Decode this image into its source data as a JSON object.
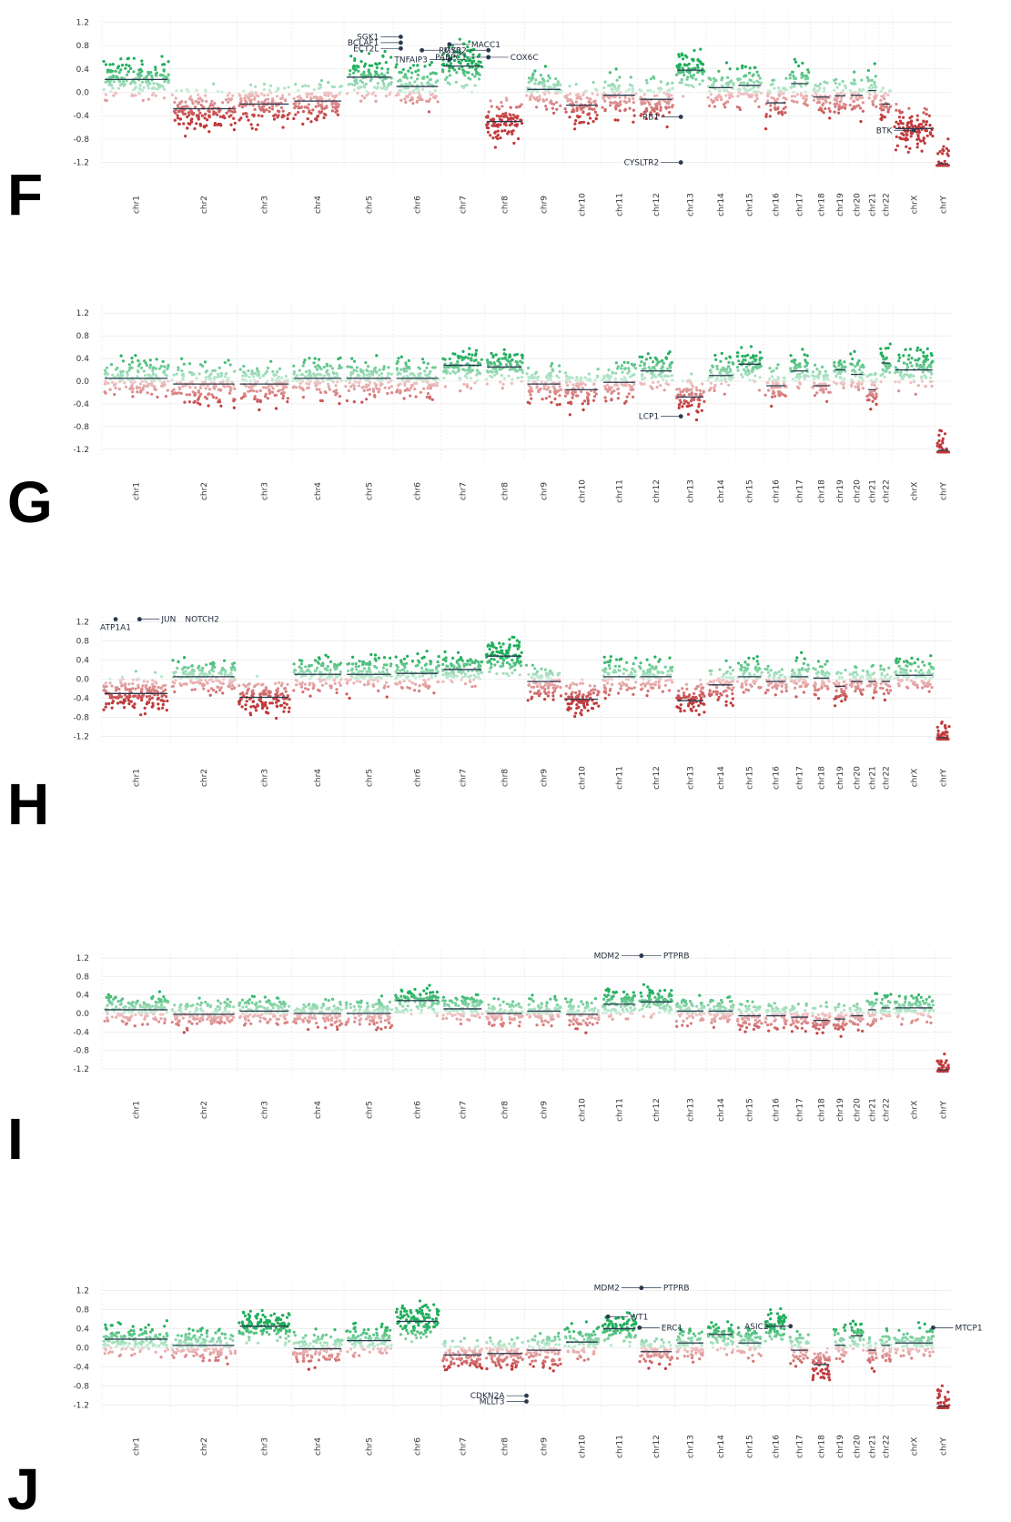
{
  "chart_data": [
    {
      "panel": "F",
      "type": "scatter",
      "y_ticks": [
        "1.2",
        "0.8",
        "0.4",
        "0.0",
        "-0.4",
        "-0.8",
        "-1.2"
      ],
      "ylim": [
        -1.3,
        1.3
      ],
      "chromosomes": [
        "chr1",
        "chr2",
        "chr3",
        "chr4",
        "chr5",
        "chr6",
        "chr7",
        "chr8",
        "chr9",
        "chr10",
        "chr11",
        "chr12",
        "chr13",
        "chr14",
        "chr15",
        "chr16",
        "chr17",
        "chr18",
        "chr19",
        "chr20",
        "chr21",
        "chr22",
        "chrX",
        "chrY"
      ],
      "segment_means": [
        0.22,
        -0.28,
        -0.2,
        -0.15,
        0.26,
        0.1,
        0.45,
        -0.5,
        0.05,
        -0.22,
        -0.05,
        -0.12,
        0.38,
        0.08,
        0.12,
        -0.18,
        0.15,
        -0.08,
        -0.06,
        -0.05,
        0.03,
        -0.2,
        -0.62,
        -1.22
      ],
      "spread": 0.22,
      "genes": [
        {
          "label": "SGK1",
          "chr": 5,
          "pos": 0.15,
          "y": 0.95,
          "side": "left"
        },
        {
          "label": "BCLAF1",
          "chr": 5,
          "pos": 0.15,
          "y": 0.85,
          "side": "left"
        },
        {
          "label": "ECT2L",
          "chr": 5,
          "pos": 0.15,
          "y": 0.75,
          "side": "left"
        },
        {
          "label": "MACC1",
          "chr": 6,
          "pos": 0.2,
          "y": 0.82,
          "side": "right"
        },
        {
          "label": "MYB",
          "chr": 5,
          "pos": 0.6,
          "y": 0.72,
          "side": "right"
        },
        {
          "label": "RGS22",
          "chr": 7,
          "pos": 0.1,
          "y": 0.72,
          "side": "left"
        },
        {
          "label": "TNFAIP3",
          "chr": 6,
          "pos": 0.2,
          "y": 0.56,
          "side": "left"
        },
        {
          "label": "PABPC1",
          "chr": 7,
          "pos": 0.1,
          "y": 0.6,
          "side": "left"
        },
        {
          "label": "COX6C",
          "chr": 7,
          "pos": 0.1,
          "y": 0.6,
          "side": "right"
        },
        {
          "label": "RB1",
          "chr": 12,
          "pos": 0.2,
          "y": -0.42,
          "side": "left"
        },
        {
          "label": "CYSLTR2",
          "chr": 12,
          "pos": 0.2,
          "y": -1.2,
          "side": "left"
        },
        {
          "label": "BTK",
          "chr": 22,
          "pos": 0.5,
          "y": -0.65,
          "side": "left"
        }
      ]
    },
    {
      "panel": "G",
      "type": "scatter",
      "y_ticks": [
        "1.2",
        "0.8",
        "0.4",
        "0.0",
        "-0.4",
        "-0.8",
        "-1.2"
      ],
      "ylim": [
        -1.3,
        1.3
      ],
      "chromosomes": [
        "chr1",
        "chr2",
        "chr3",
        "chr4",
        "chr5",
        "chr6",
        "chr7",
        "chr8",
        "chr9",
        "chr10",
        "chr11",
        "chr12",
        "chr13",
        "chr14",
        "chr15",
        "chr16",
        "chr17",
        "chr18",
        "chr19",
        "chr20",
        "chr21",
        "chr22",
        "chrX",
        "chrY"
      ],
      "segment_means": [
        0.05,
        -0.05,
        -0.05,
        0.05,
        0.05,
        0.05,
        0.28,
        0.25,
        -0.05,
        -0.15,
        -0.02,
        0.18,
        -0.28,
        0.1,
        0.3,
        -0.08,
        0.18,
        -0.08,
        0.2,
        0.12,
        -0.15,
        0.32,
        0.2,
        -1.22
      ],
      "spread": 0.2,
      "genes": [
        {
          "label": "LCP1",
          "chr": 12,
          "pos": 0.2,
          "y": -0.62,
          "side": "left"
        }
      ]
    },
    {
      "panel": "H",
      "type": "scatter",
      "y_ticks": [
        "1.2",
        "0.8",
        "0.4",
        "0.0",
        "-0.4",
        "-0.8",
        "-1.2"
      ],
      "ylim": [
        -1.3,
        1.3
      ],
      "chromosomes": [
        "chr1",
        "chr2",
        "chr3",
        "chr4",
        "chr5",
        "chr6",
        "chr7",
        "chr8",
        "chr9",
        "chr10",
        "chr11",
        "chr12",
        "chr13",
        "chr14",
        "chr15",
        "chr16",
        "chr17",
        "chr18",
        "chr19",
        "chr20",
        "chr21",
        "chr22",
        "chrX",
        "chrY"
      ],
      "segment_means": [
        -0.3,
        0.05,
        -0.38,
        0.1,
        0.1,
        0.12,
        0.2,
        0.48,
        -0.05,
        -0.42,
        0.05,
        0.05,
        -0.45,
        -0.12,
        0.05,
        -0.05,
        0.05,
        0.02,
        -0.15,
        -0.05,
        -0.05,
        -0.05,
        0.08,
        -1.22
      ],
      "spread": 0.22,
      "genes": [
        {
          "label": "ATP1A1",
          "chr": 0,
          "pos": 0.2,
          "y": 1.25,
          "side": "below"
        },
        {
          "label": "JUN",
          "chr": 0,
          "pos": 0.55,
          "y": 1.25,
          "side": "right"
        },
        {
          "label": "NOTCH2",
          "chr": 0,
          "pos": 0.55,
          "y": 1.25,
          "side": "right2"
        }
      ]
    },
    {
      "panel": "I",
      "type": "scatter",
      "y_ticks": [
        "1.2",
        "0.8",
        "0.4",
        "0.0",
        "-0.4",
        "-0.8",
        "-1.2"
      ],
      "ylim": [
        -1.3,
        1.3
      ],
      "chromosomes": [
        "chr1",
        "chr2",
        "chr3",
        "chr4",
        "chr5",
        "chr6",
        "chr7",
        "chr8",
        "chr9",
        "chr10",
        "chr11",
        "chr12",
        "chr13",
        "chr14",
        "chr15",
        "chr16",
        "chr17",
        "chr18",
        "chr19",
        "chr20",
        "chr21",
        "chr22",
        "chrX",
        "chrY"
      ],
      "segment_means": [
        0.08,
        -0.02,
        0.05,
        0.0,
        0.0,
        0.28,
        0.1,
        0.0,
        0.05,
        -0.02,
        0.2,
        0.25,
        0.05,
        0.05,
        -0.05,
        -0.05,
        -0.08,
        -0.15,
        -0.12,
        -0.05,
        0.08,
        0.12,
        0.12,
        -1.22
      ],
      "spread": 0.18,
      "genes": [
        {
          "label": "MDM2",
          "chr": 11,
          "pos": 0.1,
          "y": 1.25,
          "side": "left"
        },
        {
          "label": "PTPRB",
          "chr": 11,
          "pos": 0.1,
          "y": 1.25,
          "side": "right"
        }
      ]
    },
    {
      "panel": "J",
      "type": "scatter",
      "y_ticks": [
        "1.2",
        "0.8",
        "0.4",
        "0.0",
        "-0.4",
        "-0.8",
        "-1.2"
      ],
      "ylim": [
        -1.3,
        1.3
      ],
      "chromosomes": [
        "chr1",
        "chr2",
        "chr3",
        "chr4",
        "chr5",
        "chr6",
        "chr7",
        "chr8",
        "chr9",
        "chr10",
        "chr11",
        "chr12",
        "chr13",
        "chr14",
        "chr15",
        "chr16",
        "chr17",
        "chr18",
        "chr19",
        "chr20",
        "chr21",
        "chr22",
        "chrX",
        "chrY"
      ],
      "segment_means": [
        0.18,
        0.05,
        0.45,
        -0.02,
        0.15,
        0.55,
        -0.15,
        -0.12,
        -0.05,
        0.12,
        0.4,
        -0.08,
        0.1,
        0.28,
        0.1,
        0.45,
        -0.05,
        -0.35,
        0.05,
        0.25,
        -0.05,
        0.05,
        0.1,
        -1.22
      ],
      "spread": 0.2,
      "genes": [
        {
          "label": "MDM2",
          "chr": 11,
          "pos": 0.1,
          "y": 1.25,
          "side": "left"
        },
        {
          "label": "PTPRB",
          "chr": 11,
          "pos": 0.1,
          "y": 1.25,
          "side": "right"
        },
        {
          "label": "WT1",
          "chr": 10,
          "pos": 0.2,
          "y": 0.65,
          "side": "right"
        },
        {
          "label": "ERC1",
          "chr": 11,
          "pos": 0.05,
          "y": 0.42,
          "side": "right"
        },
        {
          "label": "ASIC2",
          "chr": 16,
          "pos": 0.1,
          "y": 0.45,
          "side": "left"
        },
        {
          "label": "MTCP1",
          "chr": 22,
          "pos": 0.95,
          "y": 0.42,
          "side": "right"
        },
        {
          "label": "CDKN2A",
          "chr": 8,
          "pos": 0.05,
          "y": -1.0,
          "side": "left"
        },
        {
          "label": "MLLT3",
          "chr": 8,
          "pos": 0.05,
          "y": -1.12,
          "side": "left"
        }
      ]
    }
  ],
  "colors": {
    "gain": "#1fae5b",
    "loss": "#c0393b",
    "neutral_gain": "#cdeedb",
    "neutral_loss": "#f1c9c9",
    "segment": "#2b3a4e",
    "grid": "#e4e4e4"
  }
}
